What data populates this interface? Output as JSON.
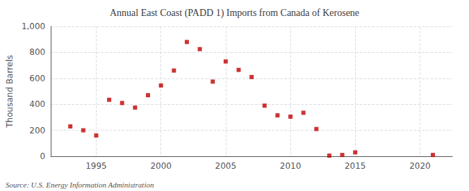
{
  "chart_data": {
    "type": "scatter",
    "title": "Annual East Coast (PADD 1) Imports from Canada of Kerosene",
    "ylabel": "Thousand Barrels",
    "annotations": [
      "Source: U.S. Energy Information Administration"
    ],
    "x": [
      1993,
      1994,
      1995,
      1996,
      1997,
      1998,
      1999,
      2000,
      2001,
      2002,
      2003,
      2004,
      2005,
      2006,
      2007,
      2008,
      2009,
      2010,
      2011,
      2012,
      2013,
      2014,
      2015,
      2021
    ],
    "values": [
      230,
      200,
      160,
      435,
      410,
      375,
      470,
      545,
      660,
      880,
      825,
      575,
      730,
      665,
      610,
      390,
      315,
      305,
      335,
      210,
      5,
      10,
      30,
      10
    ],
    "color": "#c00000",
    "marker": "square",
    "xlim": [
      1991.5,
      2022.5
    ],
    "xticks": [
      1995,
      2000,
      2005,
      2010,
      2015,
      2020
    ],
    "ylim": [
      0,
      1000
    ],
    "yticks": [
      0,
      200,
      400,
      600,
      800,
      {
        "value": 1000,
        "label": "1,000"
      }
    ],
    "grid": true
  }
}
